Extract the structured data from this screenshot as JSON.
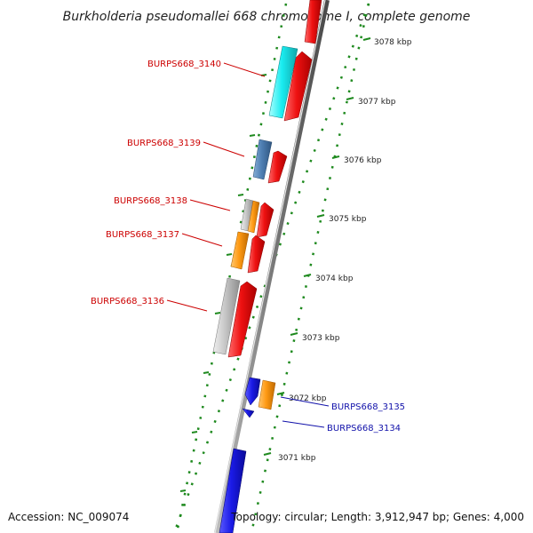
{
  "title": "Burkholderia pseudomallei 668 chromosome I, complete genome",
  "accession_text": "Accession: NC_009074",
  "summary_text": "Topology: circular; Length: 3,912,947 bp; Genes: 4,000",
  "colors": {
    "forward_cds": "#ee1111",
    "reverse_blue": "#1a1ae6",
    "cyan": "#19ecf0",
    "steelblue": "#4f7fb3",
    "orange": "#ff9a14",
    "gray": "#c6c6c6",
    "tick_green": "#1f8a1f",
    "label_red": "#cc0000",
    "label_blue": "#1111aa"
  },
  "scale_ticks": [
    "3078 kbp",
    "3077 kbp",
    "3076 kbp",
    "3075 kbp",
    "3074 kbp",
    "3073 kbp",
    "3072 kbp",
    "3071 kbp"
  ],
  "gene_labels": [
    {
      "name": "BURPS668_3140",
      "color": "label_red"
    },
    {
      "name": "BURPS668_3139",
      "color": "label_red"
    },
    {
      "name": "BURPS668_3138",
      "color": "label_red"
    },
    {
      "name": "BURPS668_3137",
      "color": "label_red"
    },
    {
      "name": "BURPS668_3136",
      "color": "label_red"
    },
    {
      "name": "BURPS668_3135",
      "color": "label_blue"
    },
    {
      "name": "BURPS668_3134",
      "color": "label_blue"
    }
  ]
}
